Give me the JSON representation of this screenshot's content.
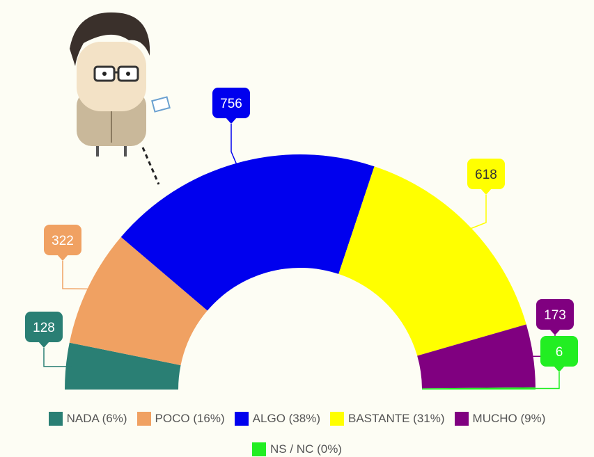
{
  "chart_data": {
    "type": "half-donut",
    "categories": [
      "NADA (6%)",
      "POCO (16%)",
      "ALGO (38%)",
      "BASTANTE (31%)",
      "MUCHO (9%)",
      "NS / NC (0%)"
    ],
    "values": [
      128,
      322,
      756,
      618,
      173,
      6
    ],
    "colors": [
      "#2a7f74",
      "#f0a162",
      "#0000ee",
      "#ffff00",
      "#800080",
      "#22ee22"
    ]
  }
}
